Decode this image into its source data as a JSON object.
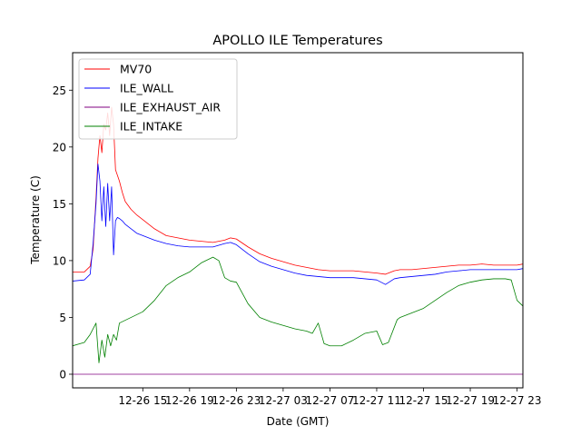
{
  "chart_data": {
    "type": "line",
    "title": "APOLLO ILE Temperatures",
    "xlabel": "Date (GMT)",
    "ylabel": "Temperature (C)",
    "xlim": [
      "2023-12-26 09:00",
      "2023-12-27 23:30"
    ],
    "ylim": [
      -1.2,
      28.3
    ],
    "x_ticks": [
      "12-26 15",
      "12-26 19",
      "12-26 23",
      "12-27 03",
      "12-27 07",
      "12-27 11",
      "12-27 15",
      "12-27 19",
      "12-27 23"
    ],
    "y_ticks": [
      0,
      5,
      10,
      15,
      20,
      25
    ],
    "grid": false,
    "legend_position": "upper-left",
    "series": [
      {
        "name": "MV70",
        "color": "#ff0000",
        "x": [
          "2023-12-26 09:00",
          "2023-12-26 10:00",
          "2023-12-26 10:30",
          "2023-12-26 10:45",
          "2023-12-26 11:00",
          "2023-12-26 11:10",
          "2023-12-26 11:20",
          "2023-12-26 11:30",
          "2023-12-26 11:40",
          "2023-12-26 11:50",
          "2023-12-26 12:00",
          "2023-12-26 12:10",
          "2023-12-26 12:20",
          "2023-12-26 12:30",
          "2023-12-26 12:40",
          "2023-12-26 12:50",
          "2023-12-26 13:00",
          "2023-12-26 13:15",
          "2023-12-26 13:30",
          "2023-12-26 14:00",
          "2023-12-26 14:30",
          "2023-12-26 15:00",
          "2023-12-26 16:00",
          "2023-12-26 17:00",
          "2023-12-26 18:00",
          "2023-12-26 19:00",
          "2023-12-26 20:00",
          "2023-12-26 21:00",
          "2023-12-26 22:00",
          "2023-12-26 22:30",
          "2023-12-26 23:00",
          "2023-12-27 00:00",
          "2023-12-27 01:00",
          "2023-12-27 02:00",
          "2023-12-27 03:00",
          "2023-12-27 04:00",
          "2023-12-27 05:00",
          "2023-12-27 06:00",
          "2023-12-27 07:00",
          "2023-12-27 08:00",
          "2023-12-27 09:00",
          "2023-12-27 10:00",
          "2023-12-27 11:00",
          "2023-12-27 11:45",
          "2023-12-27 12:30",
          "2023-12-27 13:00",
          "2023-12-27 14:00",
          "2023-12-27 15:00",
          "2023-12-27 16:00",
          "2023-12-27 17:00",
          "2023-12-27 18:00",
          "2023-12-27 19:00",
          "2023-12-27 20:00",
          "2023-12-27 21:00",
          "2023-12-27 22:00",
          "2023-12-27 23:00",
          "2023-12-27 23:30"
        ],
        "y": [
          9.0,
          9.0,
          9.5,
          11.0,
          15.5,
          19.0,
          21.0,
          19.5,
          22.0,
          21.5,
          23.0,
          21.0,
          23.5,
          22.0,
          18.0,
          17.5,
          17.0,
          16.0,
          15.2,
          14.5,
          14.0,
          13.6,
          12.8,
          12.2,
          12.0,
          11.8,
          11.7,
          11.6,
          11.8,
          12.0,
          11.9,
          11.2,
          10.6,
          10.2,
          9.9,
          9.6,
          9.4,
          9.2,
          9.1,
          9.1,
          9.1,
          9.0,
          8.9,
          8.8,
          9.1,
          9.2,
          9.2,
          9.3,
          9.4,
          9.5,
          9.6,
          9.6,
          9.7,
          9.6,
          9.6,
          9.6,
          9.7
        ]
      },
      {
        "name": "ILE_WALL",
        "color": "#0000ff",
        "x": [
          "2023-12-26 09:00",
          "2023-12-26 10:00",
          "2023-12-26 10:30",
          "2023-12-26 10:45",
          "2023-12-26 11:00",
          "2023-12-26 11:10",
          "2023-12-26 11:20",
          "2023-12-26 11:30",
          "2023-12-26 11:40",
          "2023-12-26 11:50",
          "2023-12-26 12:00",
          "2023-12-26 12:10",
          "2023-12-26 12:20",
          "2023-12-26 12:30",
          "2023-12-26 12:40",
          "2023-12-26 12:50",
          "2023-12-26 13:00",
          "2023-12-26 13:15",
          "2023-12-26 13:30",
          "2023-12-26 14:00",
          "2023-12-26 14:30",
          "2023-12-26 15:00",
          "2023-12-26 16:00",
          "2023-12-26 17:00",
          "2023-12-26 18:00",
          "2023-12-26 19:00",
          "2023-12-26 20:00",
          "2023-12-26 21:00",
          "2023-12-26 22:00",
          "2023-12-26 22:30",
          "2023-12-26 23:00",
          "2023-12-27 00:00",
          "2023-12-27 01:00",
          "2023-12-27 02:00",
          "2023-12-27 03:00",
          "2023-12-27 04:00",
          "2023-12-27 05:00",
          "2023-12-27 06:00",
          "2023-12-27 07:00",
          "2023-12-27 08:00",
          "2023-12-27 09:00",
          "2023-12-27 10:00",
          "2023-12-27 11:00",
          "2023-12-27 11:45",
          "2023-12-27 12:30",
          "2023-12-27 13:00",
          "2023-12-27 14:00",
          "2023-12-27 15:00",
          "2023-12-27 16:00",
          "2023-12-27 17:00",
          "2023-12-27 18:00",
          "2023-12-27 19:00",
          "2023-12-27 20:00",
          "2023-12-27 21:00",
          "2023-12-27 22:00",
          "2023-12-27 23:00",
          "2023-12-27 23:30"
        ],
        "y": [
          8.2,
          8.3,
          8.8,
          11.5,
          15.0,
          18.5,
          17.0,
          13.5,
          16.5,
          13.0,
          16.8,
          13.5,
          16.5,
          10.5,
          13.5,
          13.8,
          13.7,
          13.5,
          13.2,
          12.8,
          12.4,
          12.2,
          11.8,
          11.5,
          11.3,
          11.2,
          11.2,
          11.2,
          11.5,
          11.6,
          11.4,
          10.6,
          9.9,
          9.5,
          9.2,
          8.9,
          8.7,
          8.6,
          8.5,
          8.5,
          8.5,
          8.4,
          8.3,
          7.9,
          8.4,
          8.5,
          8.6,
          8.7,
          8.8,
          9.0,
          9.1,
          9.2,
          9.2,
          9.2,
          9.2,
          9.2,
          9.3
        ]
      },
      {
        "name": "ILE_EXHAUST_AIR",
        "color": "#800080",
        "x": [
          "2023-12-26 09:00",
          "2023-12-27 23:30"
        ],
        "y": [
          0.0,
          0.0
        ]
      },
      {
        "name": "ILE_INTAKE",
        "color": "#008000",
        "x": [
          "2023-12-26 09:00",
          "2023-12-26 10:00",
          "2023-12-26 10:30",
          "2023-12-26 11:00",
          "2023-12-26 11:15",
          "2023-12-26 11:30",
          "2023-12-26 11:45",
          "2023-12-26 12:00",
          "2023-12-26 12:15",
          "2023-12-26 12:30",
          "2023-12-26 12:45",
          "2023-12-26 13:00",
          "2023-12-26 14:00",
          "2023-12-26 15:00",
          "2023-12-26 16:00",
          "2023-12-26 17:00",
          "2023-12-26 18:00",
          "2023-12-26 19:00",
          "2023-12-26 20:00",
          "2023-12-26 21:00",
          "2023-12-26 21:30",
          "2023-12-26 22:00",
          "2023-12-26 22:30",
          "2023-12-26 23:00",
          "2023-12-27 00:00",
          "2023-12-27 01:00",
          "2023-12-27 02:00",
          "2023-12-27 03:00",
          "2023-12-27 04:00",
          "2023-12-27 05:00",
          "2023-12-27 05:30",
          "2023-12-27 06:00",
          "2023-12-27 06:30",
          "2023-12-27 07:00",
          "2023-12-27 08:00",
          "2023-12-27 09:00",
          "2023-12-27 09:30",
          "2023-12-27 10:00",
          "2023-12-27 11:00",
          "2023-12-27 11:30",
          "2023-12-27 12:00",
          "2023-12-27 12:45",
          "2023-12-27 13:00",
          "2023-12-27 14:00",
          "2023-12-27 15:00",
          "2023-12-27 16:00",
          "2023-12-27 17:00",
          "2023-12-27 18:00",
          "2023-12-27 19:00",
          "2023-12-27 20:00",
          "2023-12-27 21:00",
          "2023-12-27 22:00",
          "2023-12-27 22:30",
          "2023-12-27 23:00",
          "2023-12-27 23:30"
        ],
        "y": [
          2.5,
          2.8,
          3.5,
          4.5,
          1.0,
          3.0,
          1.5,
          3.5,
          2.5,
          3.5,
          3.0,
          4.5,
          5.0,
          5.5,
          6.5,
          7.8,
          8.5,
          9.0,
          9.8,
          10.3,
          10.0,
          8.5,
          8.2,
          8.1,
          6.2,
          5.0,
          4.6,
          4.3,
          4.0,
          3.8,
          3.6,
          4.5,
          2.7,
          2.5,
          2.5,
          3.0,
          3.3,
          3.6,
          3.8,
          2.6,
          2.8,
          4.8,
          5.0,
          5.4,
          5.8,
          6.5,
          7.2,
          7.8,
          8.1,
          8.3,
          8.4,
          8.4,
          8.3,
          6.5,
          6.0
        ]
      }
    ]
  }
}
